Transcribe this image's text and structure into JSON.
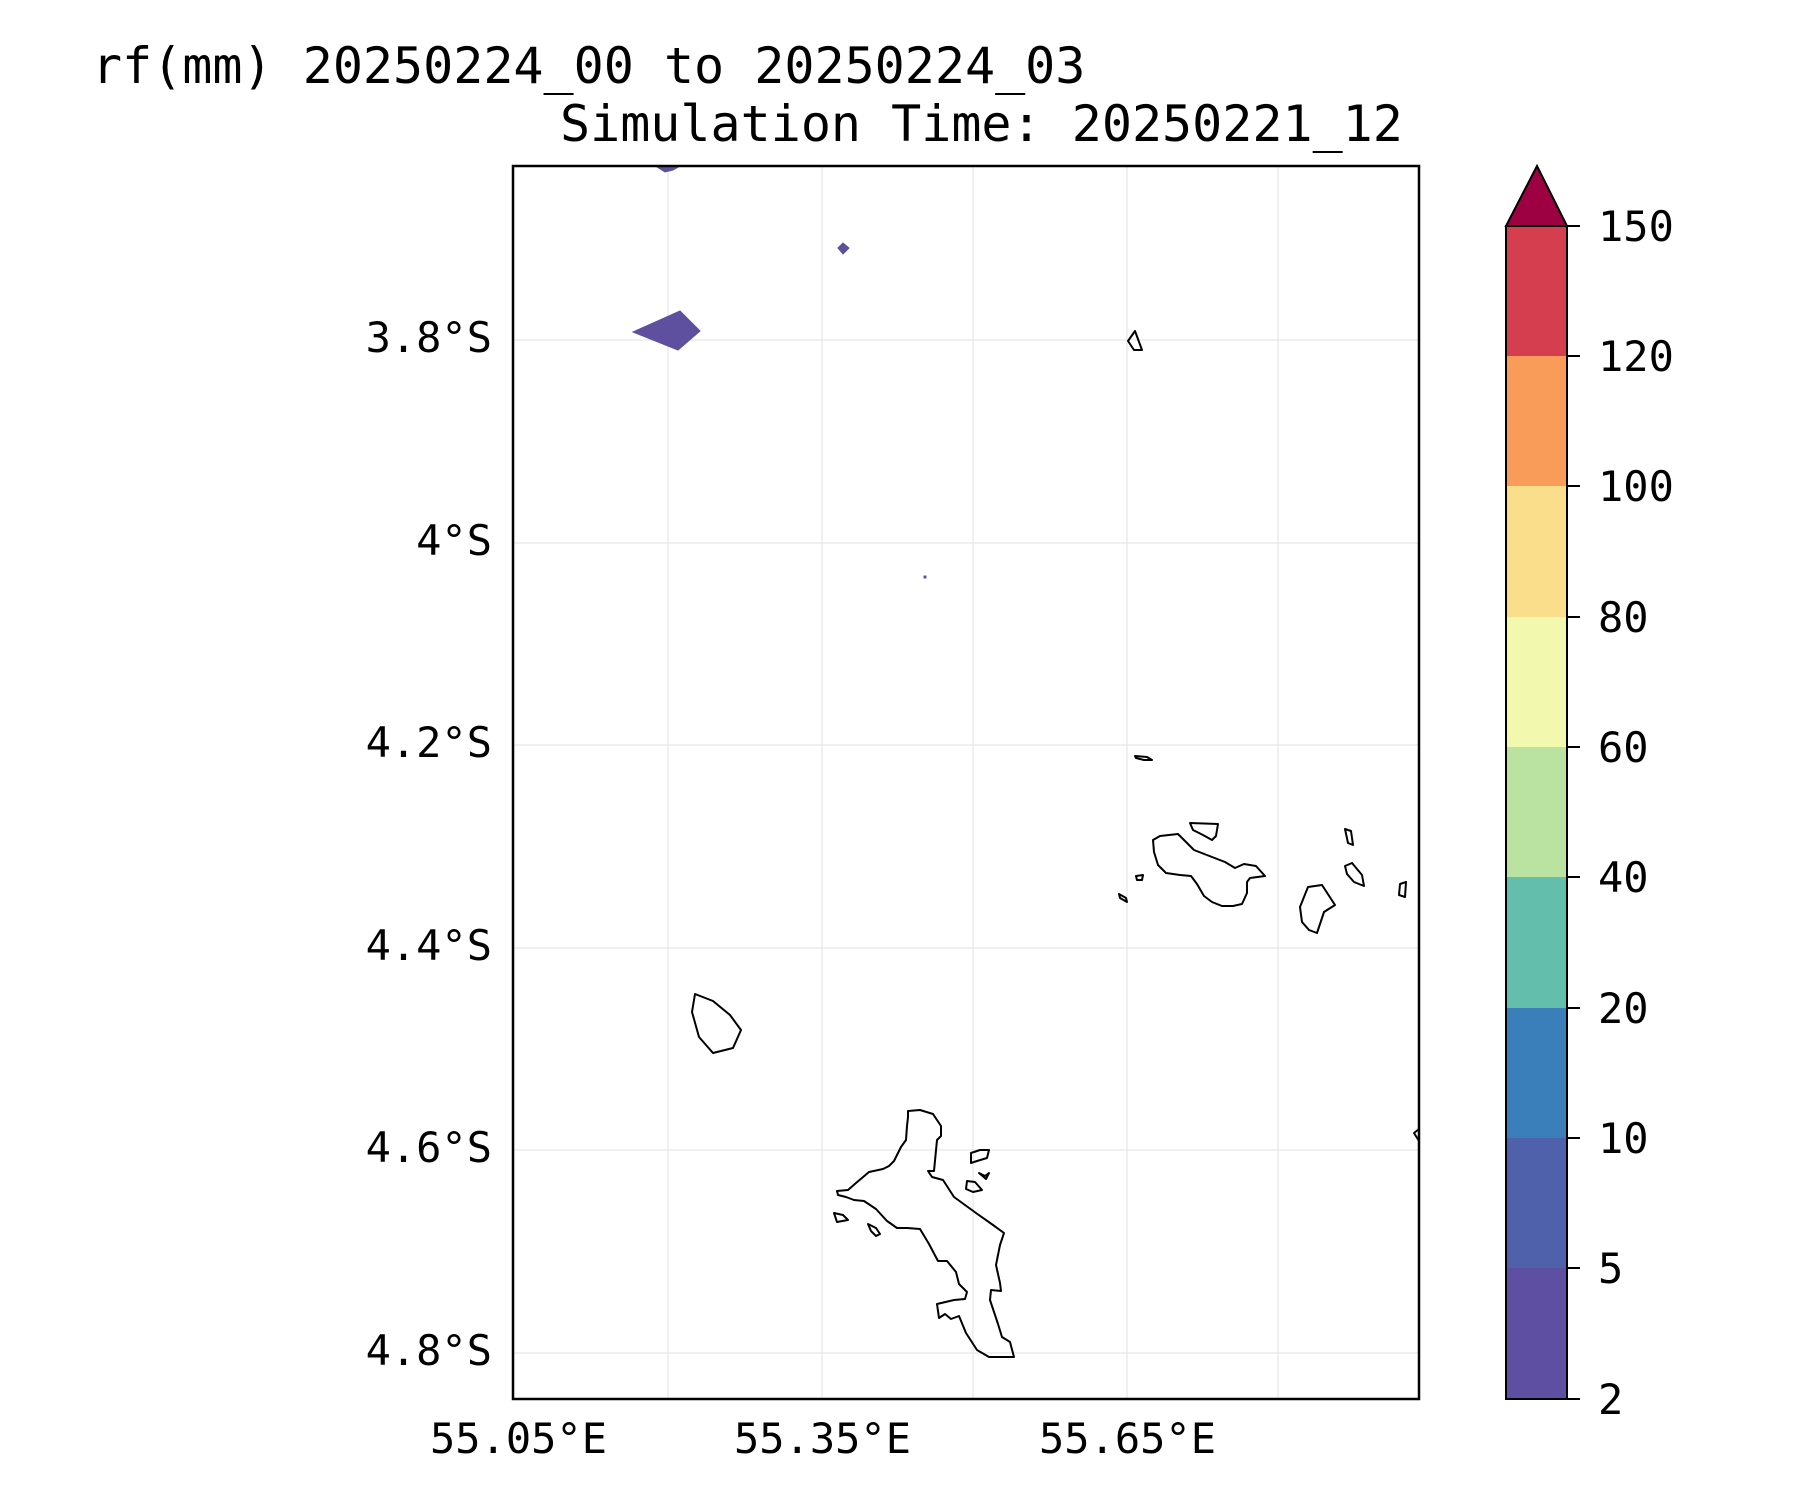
{
  "title": {
    "line1": "rf(mm) 20250224_00 to 20250224_03",
    "line2": "Simulation Time: 20250221_12"
  },
  "map": {
    "lon_ticks": [
      "55.05°E",
      "55.35°E",
      "55.65°E"
    ],
    "lat_ticks": [
      "3.8°S",
      "4°S",
      "4.2°S",
      "4.4°S",
      "4.6°S",
      "4.8°S"
    ],
    "gridlines": true,
    "coastline_color": "#000000",
    "precip_color": "#5e509e"
  },
  "colorbar": {
    "ticks": [
      "2",
      "5",
      "10",
      "20",
      "40",
      "60",
      "80",
      "100",
      "120",
      "150"
    ],
    "colors": [
      "#5e4fa2",
      "#4e61aa",
      "#3a7fb9",
      "#63bfab",
      "#bae3a1",
      "#f2f9ae",
      "#fbde8c",
      "#f99c5a",
      "#d53e4f"
    ],
    "extend_color": "#9e0142",
    "extend": "max"
  }
}
